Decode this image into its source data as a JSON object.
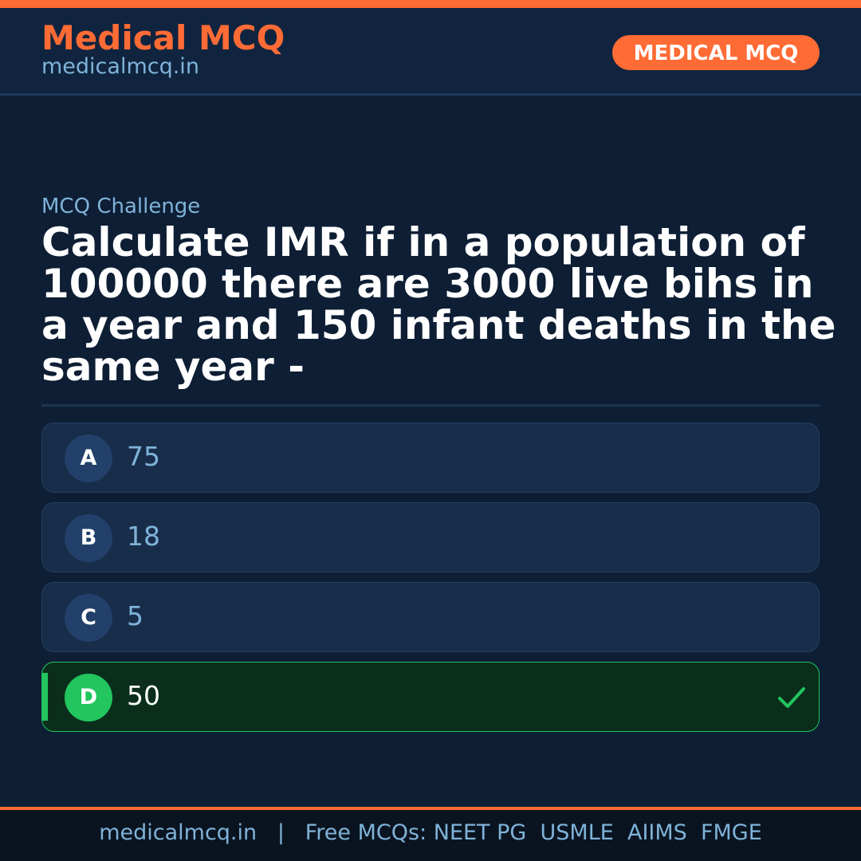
{
  "header": {
    "brand": "Medical MCQ",
    "site": "medicalmcq.in",
    "badge": "MEDICAL MCQ"
  },
  "main": {
    "eyebrow": "MCQ Challenge",
    "question": "Calculate IMR if in a population of 100000 there are 3000 live bihs in a year and 150 infant deaths in the same year -",
    "options": [
      {
        "letter": "A",
        "text": "75"
      },
      {
        "letter": "B",
        "text": "18"
      },
      {
        "letter": "C",
        "text": "5"
      },
      {
        "letter": "D",
        "text": "50",
        "correct": true
      }
    ]
  },
  "footer": {
    "text": "medicalmcq.in   |   Free MCQs: NEET PG  USMLE  AIIMS  FMGE"
  },
  "colors": {
    "accent": "#ff6b35",
    "correct": "#22c55e",
    "background": "#0e1e34"
  }
}
